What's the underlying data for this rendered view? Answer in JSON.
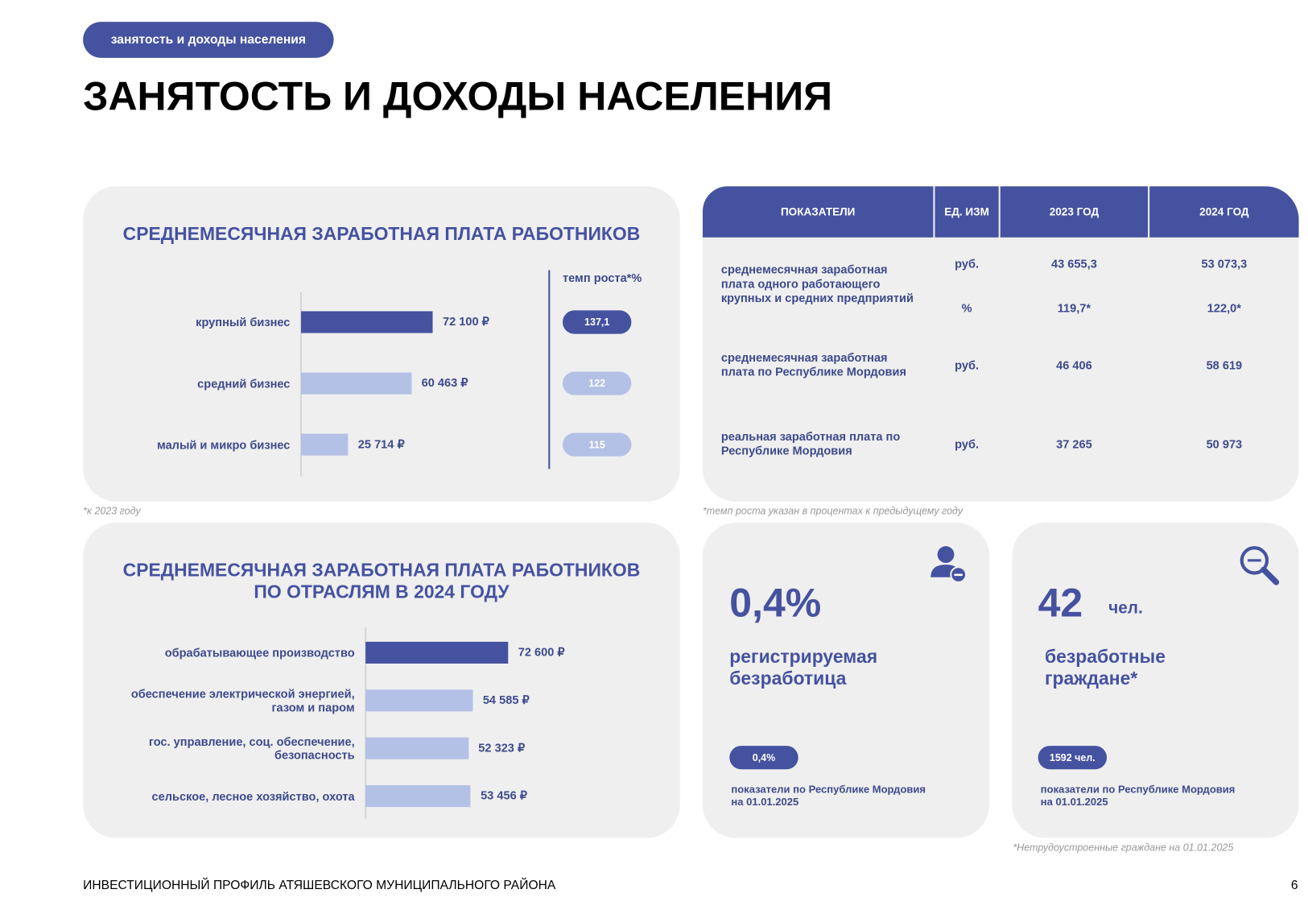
{
  "header": {
    "tag": "занятость и доходы населения",
    "title": "ЗАНЯТОСТЬ И ДОХОДЫ НАСЕЛЕНИЯ"
  },
  "chart_data": [
    {
      "type": "bar",
      "orientation": "horizontal",
      "title": "СРЕДНЕМЕСЯЧНАЯ ЗАРАБОТНАЯ ПЛАТА РАБОТНИКОВ",
      "categories": [
        "крупный бизнес",
        "средний бизнес",
        "малый и микро бизнес"
      ],
      "values": [
        72100,
        60463,
        25714
      ],
      "value_labels": [
        "72 100 ₽",
        "60 463 ₽",
        "25 714 ₽"
      ],
      "colors": [
        "#4552a0",
        "#b3c1e6",
        "#b3c1e6"
      ],
      "growth": {
        "title": "темп роста*%",
        "values": [
          137.1,
          122,
          115
        ],
        "value_labels": [
          "137,1",
          "122",
          "115"
        ]
      },
      "footnote": "*к 2023 году"
    },
    {
      "type": "bar",
      "orientation": "horizontal",
      "title": "СРЕДНЕМЕСЯЧНАЯ ЗАРАБОТНАЯ ПЛАТА РАБОТНИКОВ ПО ОТРАСЛЯМ В 2024 ГОДУ",
      "categories": [
        "обрабатывающее производство",
        "обеспечение электрической энергией, газом и паром",
        "гос. управление, соц. обеспечение, безопасность",
        "сельское, лесное хозяйство, охота"
      ],
      "values": [
        72600,
        54585,
        52323,
        53456
      ],
      "value_labels": [
        "72 600 ₽",
        "54 585 ₽",
        "52 323 ₽",
        "53 456 ₽"
      ],
      "colors": [
        "#4552a0",
        "#b3c1e6",
        "#b3c1e6",
        "#b3c1e6"
      ]
    }
  ],
  "table": {
    "header": [
      "ПОКАЗАТЕЛИ",
      "ЕД. ИЗМ",
      "2023 ГОД",
      "2024 ГОД"
    ],
    "groups": [
      {
        "label": "среднемесячная заработная плата одного работающего крупных и средних предприятий",
        "rows": [
          [
            "руб.",
            "43 655,3",
            "53 073,3"
          ],
          [
            "%",
            "119,7*",
            "122,0*"
          ]
        ]
      },
      {
        "label": "среднемесячная заработная плата по Республике Мордовия",
        "rows": [
          [
            "руб.",
            "46 406",
            "58 619"
          ]
        ]
      },
      {
        "label": "реальная заработная плата по Республике Мордовия",
        "rows": [
          [
            "руб.",
            "37 265",
            "50 973"
          ]
        ]
      }
    ],
    "footnote": "*темп роста указан в процентах к предыдущему году"
  },
  "cards": [
    {
      "value": "0,4%",
      "label": "регистрируемая безработица",
      "badge": "0,4%",
      "note": "показатели по Республике Мордовия на 01.01.2025"
    },
    {
      "value": "42",
      "unit": "чел.",
      "label": "безработные граждане*",
      "badge": "1592 чел.",
      "note": "показатели по Республике Мордовия на 01.01.2025",
      "footnote": "*Нетрудоустроенные граждане на 01.01.2025"
    }
  ],
  "footer": {
    "text": "ИНВЕСТИЦИОННЫЙ ПРОФИЛЬ АТЯШЕВСКОГО МУНИЦИПАЛЬНОГО РАЙОНА",
    "page": "6"
  }
}
